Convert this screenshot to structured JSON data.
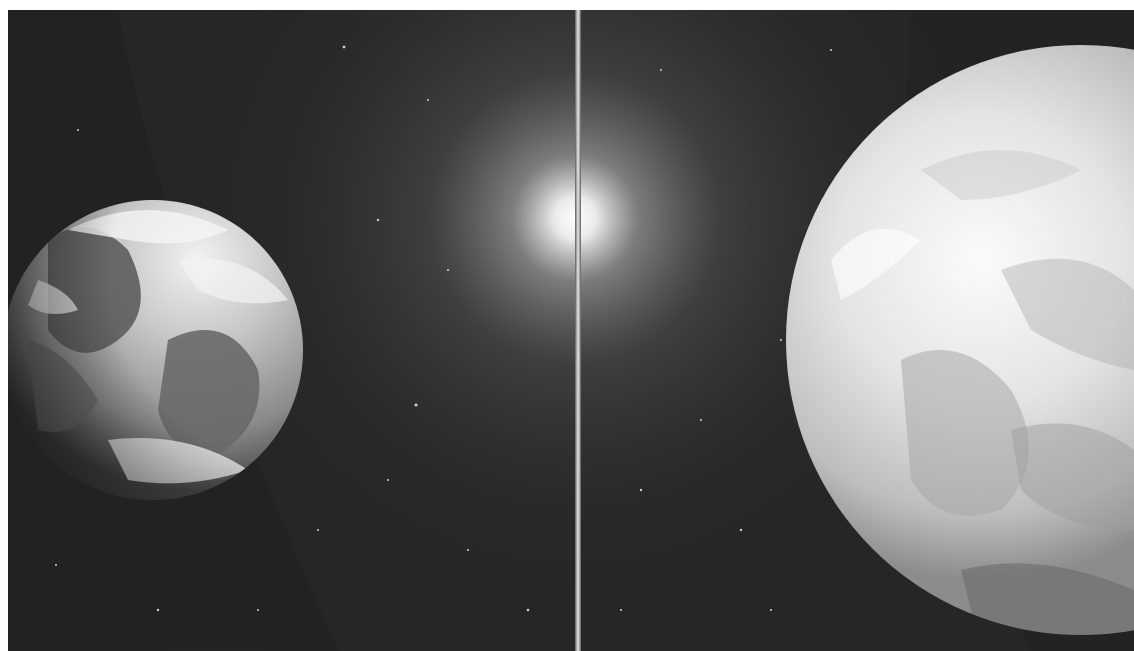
{
  "scene": {
    "subject": "",
    "panels": [
      {
        "side": "left",
        "contents": [
          "planet",
          "star-glow"
        ]
      },
      {
        "side": "right",
        "contents": [
          "planet",
          "star-glow"
        ]
      }
    ],
    "palette": {
      "space": "#2b2b2b",
      "space_dark": "#1e1e1e",
      "glow": "#ffffff",
      "planet_left_light": "#e8e8e8",
      "planet_left_dark": "#555555",
      "planet_right_light": "#f4f4f4",
      "planet_right_dark": "#9a9a9a",
      "divider": "#d0d0d0"
    }
  }
}
